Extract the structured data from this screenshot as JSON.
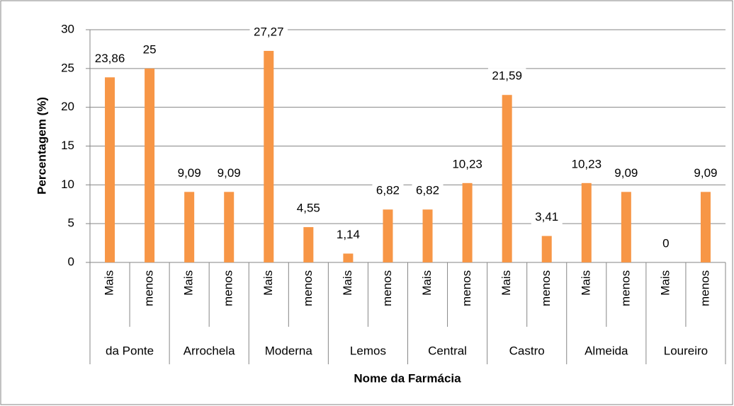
{
  "chart_data": {
    "type": "bar",
    "ylabel": "Percentagem (%)",
    "xlabel": "Nome da Farmácia",
    "categories": [
      "Mais",
      "menos",
      "Mais",
      "menos",
      "Mais",
      "menos",
      "Mais",
      "menos",
      "Mais",
      "menos",
      "Mais",
      "menos",
      "Mais",
      "menos",
      "Mais",
      "menos"
    ],
    "groups": [
      "da Ponte",
      "Arrochela",
      "Moderna",
      "Lemos",
      "Central",
      "Castro",
      "Almeida",
      "Loureiro"
    ],
    "values": [
      23.86,
      25,
      9.09,
      9.09,
      27.27,
      4.55,
      1.14,
      6.82,
      6.82,
      10.23,
      21.59,
      3.41,
      10.23,
      9.09,
      0,
      9.09
    ],
    "value_labels": [
      "23,86",
      "25",
      "9,09",
      "9,09",
      "27,27",
      "4,55",
      "1,14",
      "6,82",
      "6,82",
      "10,23",
      "21,59",
      "3,41",
      "10,23",
      "9,09",
      "0",
      "9,09"
    ],
    "color": "#f79646",
    "ylim": [
      0,
      30
    ],
    "yticks": [
      0,
      5,
      10,
      15,
      20,
      25,
      30
    ],
    "grid": true
  }
}
